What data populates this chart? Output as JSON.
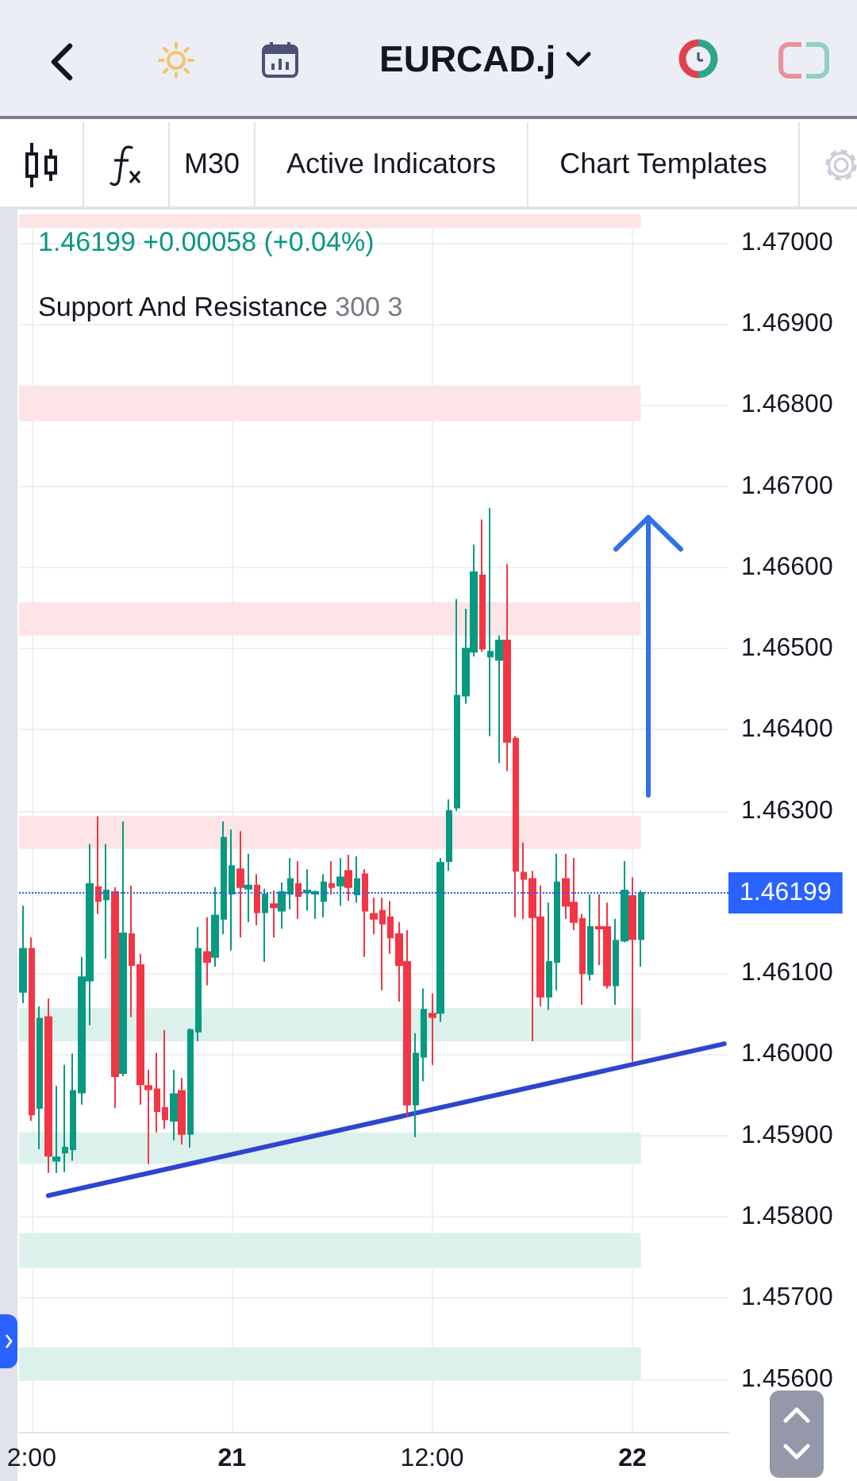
{
  "chart_data": {
    "type": "candlestick",
    "title": "EURCAD.j",
    "annotations": [
      "M30",
      "Active Indicators",
      "Chart Templates",
      "1.46199 +0.00058 (+0.04%)",
      "Support And Resistance",
      "300 3"
    ],
    "categories": [
      null,
      "2:00",
      null,
      null,
      null,
      null,
      null,
      null,
      null,
      null,
      null,
      null,
      null,
      null,
      null,
      null,
      null,
      null,
      null,
      null,
      null,
      null,
      null,
      null,
      null,
      "21",
      null,
      null,
      null,
      null,
      null,
      null,
      null,
      null,
      null,
      null,
      null,
      null,
      null,
      null,
      null,
      null,
      null,
      null,
      null,
      null,
      null,
      null,
      null,
      "12:00",
      null,
      null,
      null,
      null,
      null,
      null,
      null,
      null,
      null,
      null,
      null,
      null,
      null,
      null,
      null,
      null,
      null,
      null,
      null,
      null,
      null,
      null,
      null,
      "22",
      null,
      null,
      null,
      null,
      null,
      null,
      null,
      null,
      null,
      null,
      null
    ],
    "ohlc": [
      [
        1.46077,
        1.46183,
        1.46063,
        1.4613
      ],
      [
        1.4613,
        1.46144,
        1.45918,
        1.45926
      ],
      [
        1.45934,
        1.46059,
        1.45883,
        1.46044
      ],
      [
        1.46046,
        1.46069,
        1.45854,
        1.45875
      ],
      [
        1.45869,
        1.45961,
        1.45854,
        1.45873
      ],
      [
        1.45879,
        1.45987,
        1.45855,
        1.45885
      ],
      [
        1.45883,
        1.46001,
        1.45869,
        1.45955
      ],
      [
        1.45953,
        1.4612,
        1.45938,
        1.46095
      ],
      [
        1.46091,
        1.46259,
        1.46036,
        1.4621
      ],
      [
        1.46206,
        1.46293,
        1.46173,
        1.46189
      ],
      [
        1.46191,
        1.46259,
        1.46118,
        1.46202
      ],
      [
        1.462,
        1.46206,
        1.45934,
        1.45973
      ],
      [
        1.45977,
        1.46287,
        1.45973,
        1.46149
      ],
      [
        1.46148,
        1.46208,
        1.46046,
        1.4611
      ],
      [
        1.4611,
        1.46124,
        1.45938,
        1.45963
      ],
      [
        1.45961,
        1.45981,
        1.45865,
        1.45957
      ],
      [
        1.45957,
        1.46002,
        1.45904,
        1.4593
      ],
      [
        1.45934,
        1.4603,
        1.45908,
        1.4592
      ],
      [
        1.45918,
        1.45981,
        1.45894,
        1.45951
      ],
      [
        1.45955,
        1.45971,
        1.45889,
        1.45902
      ],
      [
        1.45902,
        1.46032,
        1.45885,
        1.4603
      ],
      [
        1.46028,
        1.46157,
        1.46016,
        1.4613
      ],
      [
        1.46126,
        1.46169,
        1.46085,
        1.46114
      ],
      [
        1.4612,
        1.46206,
        1.46108,
        1.46171
      ],
      [
        1.46167,
        1.46287,
        1.46148,
        1.46267
      ],
      [
        1.46198,
        1.46277,
        1.46128,
        1.46232
      ],
      [
        1.46228,
        1.46275,
        1.46144,
        1.46206
      ],
      [
        1.46204,
        1.46247,
        1.46163,
        1.46208
      ],
      [
        1.46208,
        1.46222,
        1.46159,
        1.46175
      ],
      [
        1.46175,
        1.46204,
        1.46114,
        1.46197
      ],
      [
        1.46185,
        1.46202,
        1.46144,
        1.46181
      ],
      [
        1.46177,
        1.46212,
        1.46155,
        1.462
      ],
      [
        1.46198,
        1.46242,
        1.46179,
        1.46216
      ],
      [
        1.4621,
        1.46238,
        1.46167,
        1.46195
      ],
      [
        1.462,
        1.46228,
        1.46177,
        1.46202
      ],
      [
        1.46198,
        1.46202,
        1.46167,
        1.462
      ],
      [
        1.46189,
        1.46222,
        1.46169,
        1.46212
      ],
      [
        1.4621,
        1.46238,
        1.46197,
        1.46206
      ],
      [
        1.46208,
        1.46242,
        1.46183,
        1.46218
      ],
      [
        1.46226,
        1.46246,
        1.46189,
        1.46206
      ],
      [
        1.46197,
        1.46244,
        1.46187,
        1.46216
      ],
      [
        1.46222,
        1.46228,
        1.4612,
        1.46177
      ],
      [
        1.46173,
        1.46193,
        1.46148,
        1.46167
      ],
      [
        1.46177,
        1.46193,
        1.46079,
        1.46161
      ],
      [
        1.46169,
        1.46189,
        1.46124,
        1.46144
      ],
      [
        1.46148,
        1.46163,
        1.46065,
        1.4611
      ],
      [
        1.46114,
        1.46153,
        1.45924,
        1.45938
      ],
      [
        1.45938,
        1.46026,
        1.45898,
        1.46001
      ],
      [
        1.45997,
        1.46081,
        1.45967,
        1.46055
      ],
      [
        1.4605,
        1.46075,
        1.45987,
        1.46046
      ],
      [
        1.46051,
        1.46242,
        1.4604,
        1.46236
      ],
      [
        1.46238,
        1.46314,
        1.46226,
        1.463
      ],
      [
        1.46304,
        1.46561,
        1.463,
        1.46442
      ],
      [
        1.46442,
        1.46549,
        1.46432,
        1.465
      ],
      [
        1.46496,
        1.46628,
        1.4649,
        1.46594
      ],
      [
        1.4659,
        1.46659,
        1.46496,
        1.465
      ],
      [
        1.4649,
        1.46673,
        1.46392,
        1.46496
      ],
      [
        1.46486,
        1.46516,
        1.46359,
        1.4651
      ],
      [
        1.4651,
        1.46604,
        1.46349,
        1.46385
      ],
      [
        1.46389,
        1.46392,
        1.46169,
        1.46226
      ],
      [
        1.46224,
        1.46261,
        1.46167,
        1.46216
      ],
      [
        1.46216,
        1.46226,
        1.46016,
        1.46169
      ],
      [
        1.46169,
        1.46208,
        1.46059,
        1.46071
      ],
      [
        1.46071,
        1.46187,
        1.46055,
        1.46114
      ],
      [
        1.46114,
        1.46247,
        1.46079,
        1.46212
      ],
      [
        1.46216,
        1.46247,
        1.46167,
        1.46183
      ],
      [
        1.46187,
        1.46242,
        1.46153,
        1.46163
      ],
      [
        1.46167,
        1.46173,
        1.46061,
        1.461
      ],
      [
        1.46099,
        1.46197,
        1.46091,
        1.46157
      ],
      [
        1.46157,
        1.46197,
        1.4611,
        1.46155
      ],
      [
        1.46157,
        1.46187,
        1.46081,
        1.46085
      ],
      [
        1.46085,
        1.46167,
        1.46061,
        1.4614
      ],
      [
        1.4614,
        1.46238,
        1.46138,
        1.46202
      ],
      [
        1.46195,
        1.46218,
        1.45991,
        1.46142
      ],
      [
        1.46142,
        1.46202,
        1.46108,
        1.46199
      ],
      null,
      null,
      null,
      null,
      null,
      null,
      null,
      null,
      null,
      null
    ],
    "colors": [
      "#089981",
      "#f23645",
      "#089981",
      "#f23645",
      "#089981",
      "#089981",
      "#089981",
      "#089981",
      "#089981",
      "#f23645",
      "#089981",
      "#f23645",
      "#089981",
      "#f23645",
      "#f23645",
      "#f23645",
      "#f23645",
      "#f23645",
      "#089981",
      "#f23645",
      "#089981",
      "#089981",
      "#f23645",
      "#089981",
      "#089981",
      "#089981",
      "#f23645",
      "#089981",
      "#f23645",
      "#089981",
      "#f23645",
      "#089981",
      "#089981",
      "#f23645",
      "#089981",
      "#089981",
      "#089981",
      "#f23645",
      "#089981",
      "#f23645",
      "#089981",
      "#f23645",
      "#f23645",
      "#f23645",
      "#f23645",
      "#f23645",
      "#f23645",
      "#089981",
      "#089981",
      "#f23645",
      "#089981",
      "#089981",
      "#089981",
      "#089981",
      "#089981",
      "#f23645",
      "#089981",
      "#089981",
      "#f23645",
      "#f23645",
      "#f23645",
      "#f23645",
      "#f23645",
      "#089981",
      "#089981",
      "#f23645",
      "#f23645",
      "#f23645",
      "#089981",
      "#f23645",
      "#f23645",
      "#089981",
      "#089981",
      "#f23645",
      "#089981",
      null,
      null,
      null,
      null,
      null,
      null,
      null,
      null,
      null,
      null
    ],
    "series": [
      {
        "type": "line",
        "values": [
          null,
          null,
          null,
          1.45826,
          null,
          null,
          null,
          null,
          null,
          null,
          null,
          null,
          null,
          null,
          null,
          null,
          null,
          null,
          null,
          null,
          null,
          null,
          null,
          null,
          null,
          null,
          null,
          null,
          null,
          null,
          null,
          null,
          null,
          null,
          null,
          null,
          null,
          null,
          null,
          null,
          null,
          null,
          null,
          null,
          null,
          null,
          null,
          null,
          null,
          null,
          null,
          null,
          null,
          null,
          null,
          null,
          null,
          null,
          null,
          null,
          null,
          null,
          null,
          null,
          null,
          null,
          null,
          null,
          null,
          null,
          null,
          null,
          null,
          null,
          null,
          null,
          null,
          null,
          null,
          null,
          null,
          null,
          null,
          null,
          1.46013
        ],
        "color": "#2f45d0"
      }
    ],
    "ylim": [
      1.45535,
      1.47035
    ],
    "yticks": [
      {
        "value": 1.456,
        "label": "1.45600"
      },
      {
        "value": 1.457,
        "label": "1.45700"
      },
      {
        "value": 1.458,
        "label": "1.45800"
      },
      {
        "value": 1.459,
        "label": "1.45900"
      },
      {
        "value": 1.46,
        "label": "1.46000"
      },
      {
        "value": 1.461,
        "label": "1.46100"
      },
      {
        "value": 1.462,
        "label": null
      },
      {
        "value": 1.463,
        "label": "1.46300"
      },
      {
        "value": 1.464,
        "label": "1.46400"
      },
      {
        "value": 1.465,
        "label": "1.46500"
      },
      {
        "value": 1.466,
        "label": "1.46600"
      },
      {
        "value": 1.467,
        "label": "1.46700"
      },
      {
        "value": 1.468,
        "label": "1.46800"
      },
      {
        "value": 1.469,
        "label": "1.46900"
      },
      {
        "value": 1.47,
        "label": "1.47000"
      }
    ],
    "ref_lines": [
      {
        "axis": "y",
        "value": 1.46199,
        "label": "1.46199",
        "color": "#2962ff",
        "line_style": "dotted"
      }
    ],
    "bands": [
      {
        "axis": "y",
        "from": 1.47018,
        "to": 1.47035,
        "color": "#fde4e7"
      },
      {
        "axis": "y",
        "from": 1.4678,
        "to": 1.46824,
        "color": "#fde4e7"
      },
      {
        "axis": "y",
        "from": 1.46516,
        "to": 1.46557,
        "color": "#fde4e7"
      },
      {
        "axis": "y",
        "from": 1.46253,
        "to": 1.46294,
        "color": "#fde4e7"
      },
      {
        "axis": "y",
        "from": 1.46016,
        "to": 1.46057,
        "color": "#dcf1ec"
      },
      {
        "axis": "y",
        "from": 1.45865,
        "to": 1.45904,
        "color": "#dcf1ec"
      },
      {
        "axis": "y",
        "from": 1.45737,
        "to": 1.4578,
        "color": "#dcf1ec"
      },
      {
        "axis": "y",
        "from": 1.45598,
        "to": 1.45639,
        "color": "#dcf1ec"
      }
    ],
    "grid": true
  }
}
